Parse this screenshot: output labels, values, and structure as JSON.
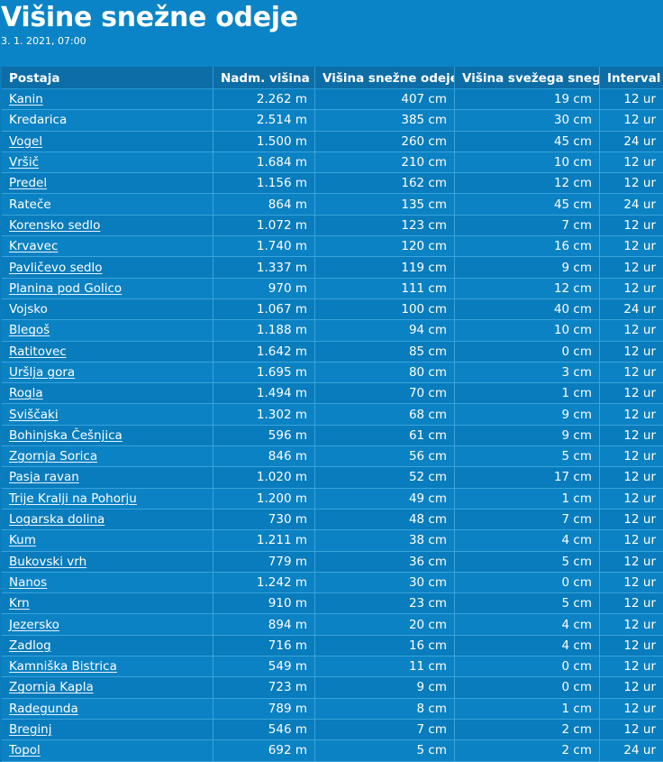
{
  "page": {
    "title": "Višine snežne odeje",
    "subtitle": "3. 1. 2021, 07:00"
  },
  "table": {
    "headers": [
      "Postaja",
      "Nadm. višina",
      "Višina snežne odeje",
      "Višina svežega snega",
      "Interval"
    ],
    "rows": [
      {
        "station": "Kanin",
        "link": true,
        "altitude": "2.262 m",
        "snow_depth": "407 cm",
        "fresh_snow": "19 cm",
        "interval": "12 ur"
      },
      {
        "station": "Kredarica",
        "link": false,
        "altitude": "2.514 m",
        "snow_depth": "385 cm",
        "fresh_snow": "30 cm",
        "interval": "12 ur"
      },
      {
        "station": "Vogel",
        "link": true,
        "altitude": "1.500 m",
        "snow_depth": "260 cm",
        "fresh_snow": "45 cm",
        "interval": "24 ur"
      },
      {
        "station": "Vršič",
        "link": true,
        "altitude": "1.684 m",
        "snow_depth": "210 cm",
        "fresh_snow": "10 cm",
        "interval": "12 ur"
      },
      {
        "station": "Predel",
        "link": true,
        "altitude": "1.156 m",
        "snow_depth": "162 cm",
        "fresh_snow": "12 cm",
        "interval": "12 ur"
      },
      {
        "station": "Rateče",
        "link": false,
        "altitude": "864 m",
        "snow_depth": "135 cm",
        "fresh_snow": "45 cm",
        "interval": "24 ur"
      },
      {
        "station": "Korensko sedlo",
        "link": true,
        "altitude": "1.072 m",
        "snow_depth": "123 cm",
        "fresh_snow": "7 cm",
        "interval": "12 ur"
      },
      {
        "station": "Krvavec",
        "link": true,
        "altitude": "1.740 m",
        "snow_depth": "120 cm",
        "fresh_snow": "16 cm",
        "interval": "12 ur"
      },
      {
        "station": "Pavličevo sedlo",
        "link": true,
        "altitude": "1.337 m",
        "snow_depth": "119 cm",
        "fresh_snow": "9 cm",
        "interval": "12 ur"
      },
      {
        "station": "Planina pod Golico",
        "link": true,
        "altitude": "970 m",
        "snow_depth": "111 cm",
        "fresh_snow": "12 cm",
        "interval": "12 ur"
      },
      {
        "station": "Vojsko",
        "link": false,
        "altitude": "1.067 m",
        "snow_depth": "100 cm",
        "fresh_snow": "40 cm",
        "interval": "24 ur"
      },
      {
        "station": "Blegoš",
        "link": true,
        "altitude": "1.188 m",
        "snow_depth": "94 cm",
        "fresh_snow": "10 cm",
        "interval": "12 ur"
      },
      {
        "station": "Ratitovec",
        "link": true,
        "altitude": "1.642 m",
        "snow_depth": "85 cm",
        "fresh_snow": "0 cm",
        "interval": "12 ur"
      },
      {
        "station": "Uršlja gora",
        "link": true,
        "altitude": "1.695 m",
        "snow_depth": "80 cm",
        "fresh_snow": "3 cm",
        "interval": "12 ur"
      },
      {
        "station": "Rogla",
        "link": true,
        "altitude": "1.494 m",
        "snow_depth": "70 cm",
        "fresh_snow": "1 cm",
        "interval": "12 ur"
      },
      {
        "station": "Sviščaki",
        "link": true,
        "altitude": "1.302 m",
        "snow_depth": "68 cm",
        "fresh_snow": "9 cm",
        "interval": "12 ur"
      },
      {
        "station": "Bohinjska Češnjica",
        "link": true,
        "altitude": "596 m",
        "snow_depth": "61 cm",
        "fresh_snow": "9 cm",
        "interval": "12 ur"
      },
      {
        "station": "Zgornja Sorica",
        "link": true,
        "altitude": "846 m",
        "snow_depth": "56 cm",
        "fresh_snow": "5 cm",
        "interval": "12 ur"
      },
      {
        "station": "Pasja ravan",
        "link": true,
        "altitude": "1.020 m",
        "snow_depth": "52 cm",
        "fresh_snow": "17 cm",
        "interval": "12 ur"
      },
      {
        "station": "Trije Kralji na Pohorju",
        "link": true,
        "altitude": "1.200 m",
        "snow_depth": "49 cm",
        "fresh_snow": "1 cm",
        "interval": "12 ur"
      },
      {
        "station": "Logarska dolina",
        "link": true,
        "altitude": "730 m",
        "snow_depth": "48 cm",
        "fresh_snow": "7 cm",
        "interval": "12 ur"
      },
      {
        "station": "Kum",
        "link": true,
        "altitude": "1.211 m",
        "snow_depth": "38 cm",
        "fresh_snow": "4 cm",
        "interval": "12 ur"
      },
      {
        "station": "Bukovski vrh",
        "link": true,
        "altitude": "779 m",
        "snow_depth": "36 cm",
        "fresh_snow": "5 cm",
        "interval": "12 ur"
      },
      {
        "station": "Nanos",
        "link": true,
        "altitude": "1.242 m",
        "snow_depth": "30 cm",
        "fresh_snow": "0 cm",
        "interval": "12 ur"
      },
      {
        "station": "Krn",
        "link": true,
        "altitude": "910 m",
        "snow_depth": "23 cm",
        "fresh_snow": "5 cm",
        "interval": "12 ur"
      },
      {
        "station": "Jezersko",
        "link": true,
        "altitude": "894 m",
        "snow_depth": "20 cm",
        "fresh_snow": "4 cm",
        "interval": "12 ur"
      },
      {
        "station": "Zadlog",
        "link": true,
        "altitude": "716 m",
        "snow_depth": "16 cm",
        "fresh_snow": "4 cm",
        "interval": "12 ur"
      },
      {
        "station": "Kamniška Bistrica",
        "link": true,
        "altitude": "549 m",
        "snow_depth": "11 cm",
        "fresh_snow": "0 cm",
        "interval": "12 ur"
      },
      {
        "station": "Zgornja Kapla",
        "link": true,
        "altitude": "723 m",
        "snow_depth": "9 cm",
        "fresh_snow": "0 cm",
        "interval": "12 ur"
      },
      {
        "station": "Radegunda",
        "link": true,
        "altitude": "789 m",
        "snow_depth": "8 cm",
        "fresh_snow": "1 cm",
        "interval": "12 ur"
      },
      {
        "station": "Breginj",
        "link": true,
        "altitude": "546 m",
        "snow_depth": "7 cm",
        "fresh_snow": "2 cm",
        "interval": "12 ur"
      },
      {
        "station": "Topol",
        "link": true,
        "altitude": "692 m",
        "snow_depth": "5 cm",
        "fresh_snow": "2 cm",
        "interval": "24 ur"
      }
    ]
  }
}
